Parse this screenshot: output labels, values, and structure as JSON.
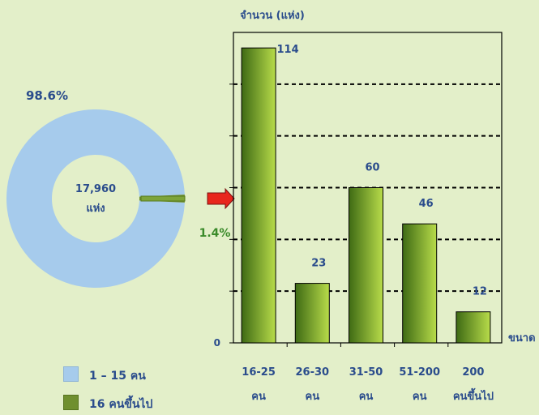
{
  "chart_data": [
    {
      "type": "pie",
      "style": "donut",
      "center_label": [
        "17,960",
        "แห่ง"
      ],
      "slices": [
        {
          "label": "1 – 15 คน",
          "value": 98.6,
          "display": "98.6%",
          "color": "#a6cbec"
        },
        {
          "label": "16 คนขึ้นไป",
          "value": 1.4,
          "display": "1.4%",
          "color": "#6f8f2f"
        }
      ]
    },
    {
      "type": "bar",
      "ylabel": "จำนวน (แห่ง)",
      "xlabel": "ขนาด",
      "categories": [
        [
          "16-25",
          "คน"
        ],
        [
          "26-30",
          "คน"
        ],
        [
          "31-50",
          "คน"
        ],
        [
          "51-200",
          "คน"
        ],
        [
          "200",
          "คนขึ้นไป"
        ]
      ],
      "values": [
        114,
        23,
        60,
        46,
        12
      ],
      "ylim": [
        0,
        120
      ],
      "gridlines": [
        20,
        40,
        60,
        80,
        100
      ],
      "y_tick_labels": [
        "0"
      ],
      "grid": "dashed",
      "bar_gradient": [
        "#3e6a14",
        "#b8dc4a"
      ]
    }
  ],
  "legend": [
    {
      "label": "1 – 15 คน",
      "color": "#a6cbec"
    },
    {
      "label": "16 คนขึ้นไป",
      "color": "#6f8f2f"
    }
  ],
  "arrow_color": "#e8261c"
}
